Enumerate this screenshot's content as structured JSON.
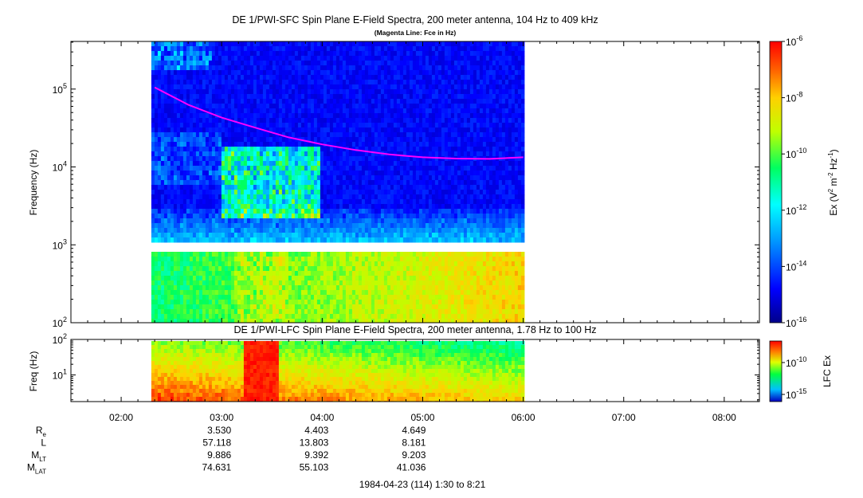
{
  "chart_data": [
    {
      "type": "heatmap",
      "title": "DE 1/PWI-SFC  Spin Plane E-Field Spectra, 200 meter antenna, 104 Hz to 409 kHz",
      "subtitle": "(Magenta Line: Fce in Hz)",
      "ylabel": "Frequency (Hz)",
      "yscale": "log",
      "ylim": [
        100,
        409000
      ],
      "yticks": [
        "10^2",
        "10^3",
        "10^4",
        "10^5"
      ],
      "data_time_range": [
        "02:18",
        "06:00"
      ],
      "colorbar": {
        "label": "Ex (V^2 m^-2 Hz^-1)",
        "scale": "log",
        "range": [
          1e-16,
          1e-06
        ],
        "ticks": [
          "10^-6",
          "10^-8",
          "10^-10",
          "10^-12",
          "10^-14",
          "10^-16"
        ]
      },
      "series": [
        {
          "name": "Fce",
          "color": "#ff00ff",
          "x": [
            "02:20",
            "02:40",
            "03:00",
            "03:20",
            "03:40",
            "04:00",
            "04:20",
            "04:40",
            "05:00",
            "05:20",
            "05:40",
            "06:00"
          ],
          "y": [
            105000,
            63000,
            43000,
            32000,
            24000,
            19500,
            16500,
            14500,
            13300,
            12800,
            12700,
            13300
          ]
        }
      ]
    },
    {
      "type": "heatmap",
      "title": "DE 1/PWI-LFC  Spin Plane E-Field Spectra, 200 meter antenna, 1.78 Hz to 100 Hz",
      "ylabel": "Freq (Hz)",
      "yscale": "log",
      "ylim": [
        1.78,
        100
      ],
      "yticks": [
        "10^1",
        "10^2"
      ],
      "data_time_range": [
        "02:18",
        "06:00"
      ],
      "colorbar": {
        "label": "LFC Ex",
        "scale": "log",
        "ticks": [
          "10^-10",
          "10^-15"
        ]
      }
    }
  ],
  "x_axis": {
    "ticks": [
      "02:00",
      "03:00",
      "04:00",
      "05:00",
      "06:00",
      "07:00",
      "08:00"
    ],
    "range": [
      "01:30",
      "08:21"
    ]
  },
  "ephemeris": {
    "rows": [
      {
        "label": "R",
        "sub": "e",
        "values": [
          "3.530",
          "4.403",
          "4.649"
        ]
      },
      {
        "label": "L",
        "sub": "",
        "values": [
          "57.118",
          "13.803",
          "8.181"
        ]
      },
      {
        "label": "M",
        "sub": "LT",
        "values": [
          "9.886",
          "9.392",
          "9.203"
        ]
      },
      {
        "label": "M",
        "sub": "LAT",
        "values": [
          "74.631",
          "55.103",
          "41.036"
        ]
      }
    ],
    "date_line": "1984-04-23 (114) 1:30 to 8:21"
  }
}
